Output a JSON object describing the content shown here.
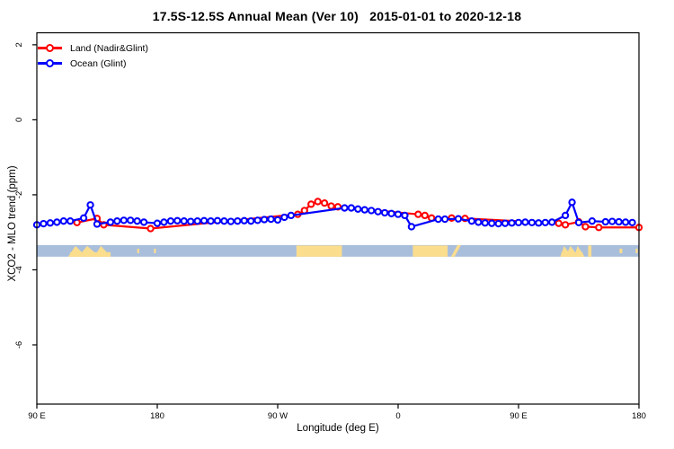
{
  "title": "17.5S-12.5S Annual Mean (Ver 10)   2015-01-01 to 2020-12-18",
  "colors": {
    "land": "#ff0000",
    "ocean": "#0000ff",
    "map_ocean": "#a9bedb",
    "map_land": "#fbdd8e",
    "axis": "#000000",
    "background": "#ffffff"
  },
  "legend": {
    "items": [
      {
        "label": "Land (Nadir&Glint)",
        "series": "land"
      },
      {
        "label": "Ocean (Glint)",
        "series": "ocean"
      }
    ]
  },
  "chart_data": {
    "type": "line",
    "title": "17.5S-12.5S Annual Mean (Ver 10)   2015-01-01 to 2020-12-18",
    "xlabel": "Longitude (deg E)",
    "ylabel": "XCO2 - MLO trend (ppm)",
    "x_range": [
      90,
      540
    ],
    "y_range": [
      -7.58,
      2.32
    ],
    "x_ticks": [
      {
        "v": 90,
        "label": "90 E"
      },
      {
        "v": 180,
        "label": "180"
      },
      {
        "v": 270,
        "label": "90 W"
      },
      {
        "v": 360,
        "label": "0"
      },
      {
        "v": 450,
        "label": "90 E"
      },
      {
        "v": 540,
        "label": "180"
      }
    ],
    "y_ticks": [
      {
        "v": 2,
        "label": "2"
      },
      {
        "v": 0,
        "label": "0"
      },
      {
        "v": -2,
        "label": "-2"
      },
      {
        "v": -4,
        "label": "-4"
      },
      {
        "v": -6,
        "label": "-6"
      }
    ],
    "grid": false,
    "legend_position": "top-left",
    "marker": "open-circle",
    "series": [
      {
        "name": "Land (Nadir&Glint)",
        "color_key": "land",
        "points": [
          [
            120,
            -2.74
          ],
          [
            135,
            -2.63
          ],
          [
            140,
            -2.8
          ],
          [
            175,
            -2.9
          ],
          [
            285,
            -2.52
          ],
          [
            290,
            -2.42
          ],
          [
            295,
            -2.25
          ],
          [
            300,
            -2.18
          ],
          [
            305,
            -2.22
          ],
          [
            310,
            -2.3
          ],
          [
            315,
            -2.32
          ],
          [
            375,
            -2.52
          ],
          [
            380,
            -2.55
          ],
          [
            385,
            -2.62
          ],
          [
            400,
            -2.62
          ],
          [
            410,
            -2.63
          ],
          [
            480,
            -2.76
          ],
          [
            485,
            -2.8
          ],
          [
            495,
            -2.72
          ],
          [
            500,
            -2.85
          ],
          [
            510,
            -2.87
          ],
          [
            540,
            -2.87
          ]
        ]
      },
      {
        "name": "Ocean (Glint)",
        "color_key": "ocean",
        "points": [
          [
            90,
            -2.8
          ],
          [
            95,
            -2.77
          ],
          [
            100,
            -2.75
          ],
          [
            105,
            -2.73
          ],
          [
            110,
            -2.7
          ],
          [
            115,
            -2.7
          ],
          [
            125,
            -2.62
          ],
          [
            130,
            -2.27
          ],
          [
            135,
            -2.78
          ],
          [
            145,
            -2.73
          ],
          [
            150,
            -2.7
          ],
          [
            155,
            -2.68
          ],
          [
            160,
            -2.68
          ],
          [
            165,
            -2.7
          ],
          [
            170,
            -2.73
          ],
          [
            180,
            -2.76
          ],
          [
            185,
            -2.73
          ],
          [
            190,
            -2.7
          ],
          [
            195,
            -2.69
          ],
          [
            200,
            -2.7
          ],
          [
            205,
            -2.71
          ],
          [
            210,
            -2.7
          ],
          [
            215,
            -2.69
          ],
          [
            220,
            -2.7
          ],
          [
            225,
            -2.69
          ],
          [
            230,
            -2.7
          ],
          [
            235,
            -2.71
          ],
          [
            240,
            -2.7
          ],
          [
            245,
            -2.69
          ],
          [
            250,
            -2.7
          ],
          [
            255,
            -2.68
          ],
          [
            260,
            -2.66
          ],
          [
            265,
            -2.65
          ],
          [
            270,
            -2.67
          ],
          [
            275,
            -2.6
          ],
          [
            280,
            -2.55
          ],
          [
            320,
            -2.35
          ],
          [
            325,
            -2.35
          ],
          [
            330,
            -2.38
          ],
          [
            335,
            -2.4
          ],
          [
            340,
            -2.42
          ],
          [
            345,
            -2.45
          ],
          [
            350,
            -2.48
          ],
          [
            355,
            -2.5
          ],
          [
            360,
            -2.52
          ],
          [
            365,
            -2.55
          ],
          [
            370,
            -2.85
          ],
          [
            390,
            -2.65
          ],
          [
            395,
            -2.65
          ],
          [
            405,
            -2.64
          ],
          [
            415,
            -2.7
          ],
          [
            420,
            -2.73
          ],
          [
            425,
            -2.75
          ],
          [
            430,
            -2.76
          ],
          [
            435,
            -2.77
          ],
          [
            440,
            -2.76
          ],
          [
            445,
            -2.75
          ],
          [
            450,
            -2.74
          ],
          [
            455,
            -2.73
          ],
          [
            460,
            -2.74
          ],
          [
            465,
            -2.75
          ],
          [
            470,
            -2.74
          ],
          [
            475,
            -2.73
          ],
          [
            485,
            -2.55
          ],
          [
            490,
            -2.2
          ],
          [
            495,
            -2.74
          ],
          [
            505,
            -2.7
          ],
          [
            515,
            -2.72
          ],
          [
            520,
            -2.71
          ],
          [
            525,
            -2.72
          ],
          [
            530,
            -2.73
          ],
          [
            535,
            -2.74
          ]
        ]
      }
    ],
    "map_band": {
      "description": "latitude-strip land/ocean map",
      "y_range": [
        -3.34,
        -3.65
      ],
      "land_segments": [
        {
          "lon1": 114.9,
          "lon2": 145.1,
          "type": "bumps"
        },
        {
          "lon1": 165.0,
          "lon2": 166.5,
          "type": "dot"
        },
        {
          "lon1": 177.5,
          "lon2": 179.0,
          "type": "dot"
        },
        {
          "lon1": 284.0,
          "lon2": 318.0,
          "type": "full"
        },
        {
          "lon1": 371.0,
          "lon2": 397.0,
          "type": "full"
        },
        {
          "lon1": 399.5,
          "lon2": 407.0,
          "type": "slash"
        },
        {
          "lon1": 482.0,
          "lon2": 498.0,
          "type": "bumps"
        },
        {
          "lon1": 502.0,
          "lon2": 504.5,
          "type": "full"
        },
        {
          "lon1": 525.5,
          "lon2": 527.5,
          "type": "dot"
        },
        {
          "lon1": 537.5,
          "lon2": 539.0,
          "type": "dot"
        }
      ]
    }
  }
}
